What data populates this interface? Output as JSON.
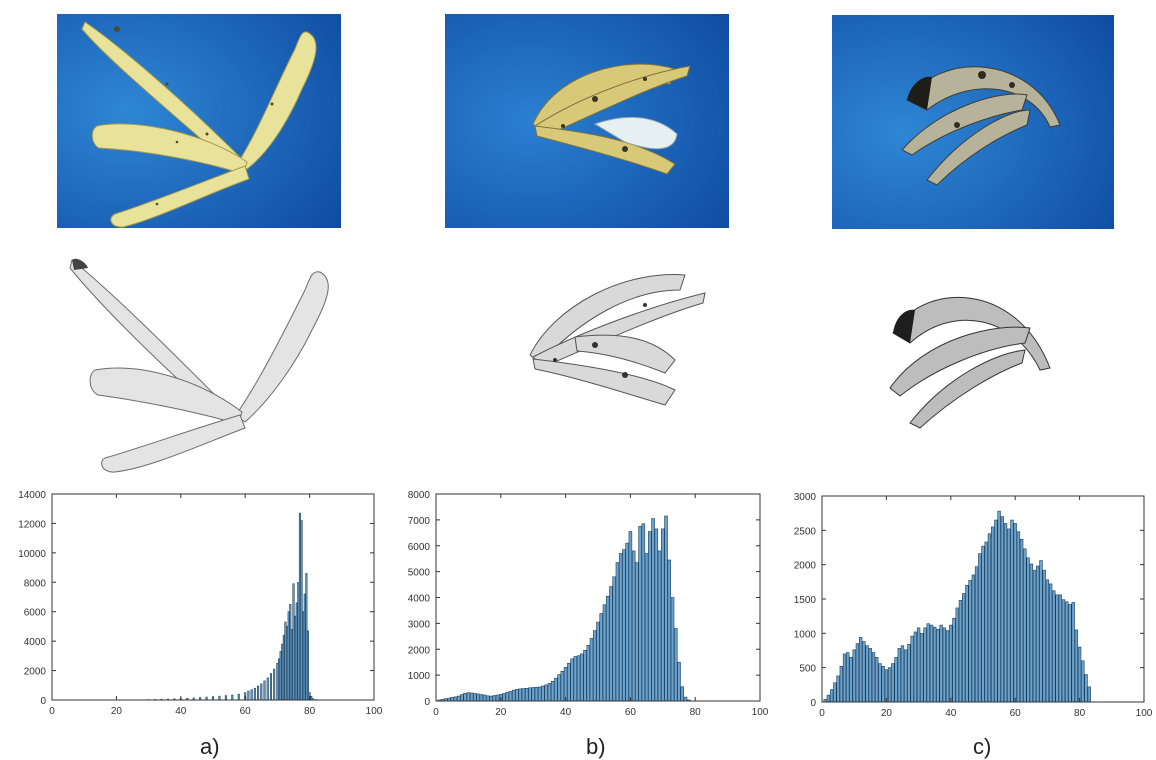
{
  "panel_labels": [
    "a)",
    "b)",
    "c)"
  ],
  "colors": {
    "bar_fill": "#6aa3cf",
    "bar_edge": "#1d3d56",
    "photo_bg": "#1660b8",
    "peel_fresh": "#e9e29a",
    "peel_ripe": "#d8c978",
    "peel_over": "#9c9a8a"
  },
  "chart_data": [
    {
      "type": "bar",
      "title": "",
      "xlabel": "",
      "ylabel": "",
      "xlim": [
        0,
        100
      ],
      "ylim": [
        0,
        14000
      ],
      "xticks": [
        0,
        20,
        40,
        60,
        80,
        100
      ],
      "yticks": [
        0,
        2000,
        4000,
        6000,
        8000,
        10000,
        12000,
        14000
      ],
      "x": [
        30,
        32,
        34,
        36,
        38,
        40,
        42,
        44,
        46,
        48,
        50,
        52,
        54,
        56,
        58,
        60,
        61,
        62,
        63,
        64,
        65,
        66,
        67,
        68,
        69,
        70,
        70.5,
        71,
        71.5,
        72,
        72.5,
        73,
        73.5,
        74,
        74.5,
        75,
        75.5,
        76,
        76.5,
        77,
        77.5,
        78,
        78.5,
        79,
        79.5,
        80,
        80.5,
        81,
        82
      ],
      "values": [
        30,
        40,
        50,
        60,
        80,
        100,
        120,
        140,
        170,
        200,
        230,
        260,
        300,
        340,
        400,
        500,
        600,
        700,
        800,
        950,
        1100,
        1300,
        1500,
        1800,
        2100,
        2500,
        2800,
        3300,
        3800,
        4400,
        5300,
        5000,
        6000,
        6500,
        4800,
        7900,
        5700,
        6600,
        8000,
        12700,
        12200,
        6000,
        7200,
        8600,
        4700,
        500,
        250,
        100,
        30
      ],
      "bar_width": 0.45
    },
    {
      "type": "bar",
      "title": "",
      "xlabel": "",
      "ylabel": "",
      "xlim": [
        0,
        100
      ],
      "ylim": [
        0,
        8000
      ],
      "xticks": [
        0,
        20,
        40,
        60,
        80,
        100
      ],
      "yticks": [
        0,
        1000,
        2000,
        3000,
        4000,
        5000,
        6000,
        7000,
        8000
      ],
      "x": [
        1,
        2,
        3,
        4,
        5,
        6,
        7,
        8,
        9,
        10,
        11,
        12,
        13,
        14,
        15,
        16,
        17,
        18,
        19,
        20,
        21,
        22,
        23,
        24,
        25,
        26,
        27,
        28,
        29,
        30,
        31,
        32,
        33,
        34,
        35,
        36,
        37,
        38,
        39,
        40,
        41,
        42,
        43,
        44,
        45,
        46,
        47,
        48,
        49,
        50,
        51,
        52,
        53,
        54,
        55,
        56,
        57,
        58,
        59,
        60,
        61,
        62,
        63,
        64,
        65,
        66,
        67,
        68,
        69,
        70,
        71,
        72,
        73,
        74,
        75,
        76,
        77,
        78
      ],
      "values": [
        40,
        60,
        90,
        110,
        140,
        160,
        190,
        250,
        300,
        320,
        310,
        290,
        270,
        250,
        230,
        200,
        190,
        210,
        230,
        260,
        290,
        330,
        370,
        420,
        450,
        470,
        480,
        490,
        510,
        520,
        530,
        540,
        580,
        620,
        680,
        760,
        880,
        1020,
        1150,
        1300,
        1460,
        1630,
        1720,
        1750,
        1820,
        1960,
        2150,
        2420,
        2720,
        3050,
        3380,
        3720,
        4050,
        4420,
        4800,
        5350,
        5700,
        5850,
        6100,
        6550,
        5800,
        5350,
        6750,
        6850,
        5700,
        6550,
        7050,
        6650,
        5800,
        6650,
        7150,
        5450,
        4000,
        2800,
        1500,
        550,
        150,
        40
      ],
      "bar_width": 0.9
    },
    {
      "type": "bar",
      "title": "",
      "xlabel": "",
      "ylabel": "",
      "xlim": [
        0,
        100
      ],
      "ylim": [
        0,
        3000
      ],
      "xticks": [
        0,
        20,
        40,
        60,
        80,
        100
      ],
      "yticks": [
        0,
        500,
        1000,
        1500,
        2000,
        2500,
        3000
      ],
      "x": [
        1,
        2,
        3,
        4,
        5,
        6,
        7,
        8,
        9,
        10,
        11,
        12,
        13,
        14,
        15,
        16,
        17,
        18,
        19,
        20,
        21,
        22,
        23,
        24,
        25,
        26,
        27,
        28,
        29,
        30,
        31,
        32,
        33,
        34,
        35,
        36,
        37,
        38,
        39,
        40,
        41,
        42,
        43,
        44,
        45,
        46,
        47,
        48,
        49,
        50,
        51,
        52,
        53,
        54,
        55,
        56,
        57,
        58,
        59,
        60,
        61,
        62,
        63,
        64,
        65,
        66,
        67,
        68,
        69,
        70,
        71,
        72,
        73,
        74,
        75,
        76,
        77,
        78,
        79,
        80,
        81,
        82,
        83
      ],
      "values": [
        40,
        100,
        180,
        280,
        380,
        520,
        700,
        720,
        650,
        760,
        850,
        940,
        880,
        820,
        780,
        720,
        650,
        560,
        520,
        470,
        500,
        560,
        650,
        780,
        820,
        760,
        840,
        960,
        1020,
        1080,
        1000,
        1080,
        1140,
        1120,
        1090,
        1060,
        1120,
        1080,
        1040,
        1120,
        1220,
        1370,
        1480,
        1580,
        1700,
        1770,
        1850,
        1970,
        2160,
        2270,
        2330,
        2450,
        2550,
        2650,
        2780,
        2700,
        2600,
        2520,
        2650,
        2600,
        2480,
        2370,
        2230,
        2100,
        2010,
        1920,
        1980,
        2060,
        1920,
        1780,
        1720,
        1620,
        1560,
        1560,
        1490,
        1460,
        1420,
        1450,
        1050,
        800,
        600,
        400,
        220
      ],
      "bar_width": 0.85
    }
  ]
}
